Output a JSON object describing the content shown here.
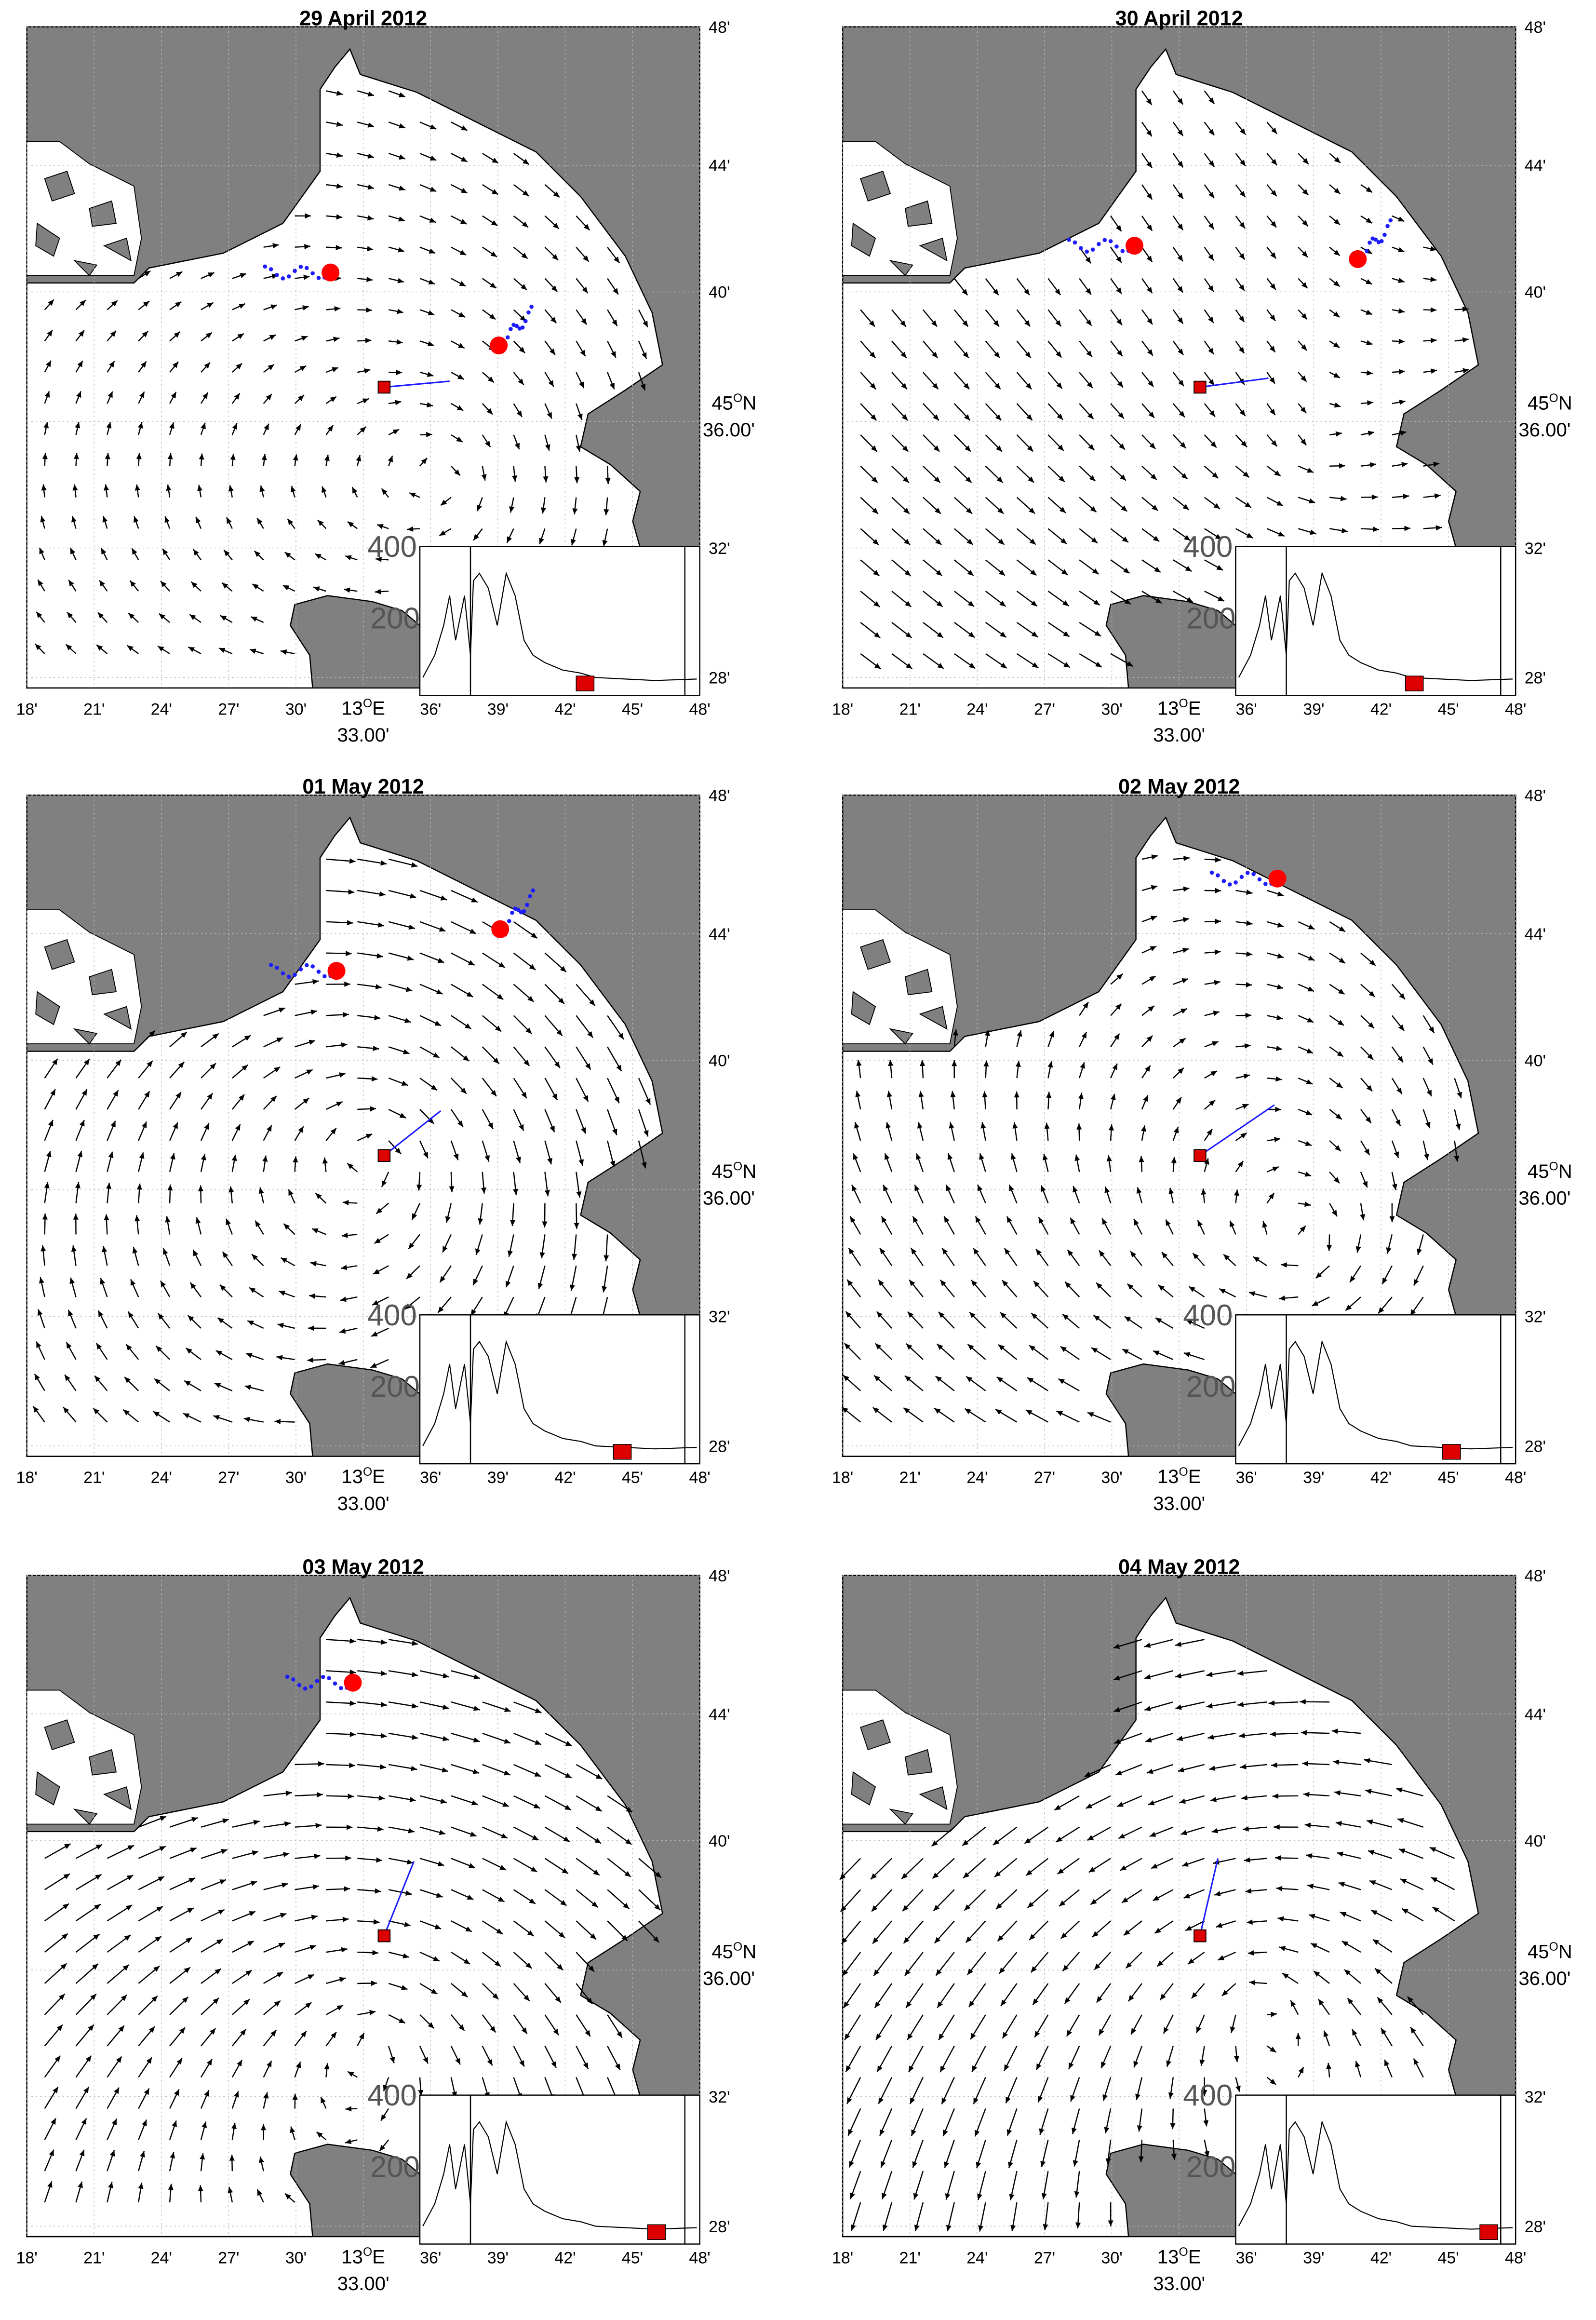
{
  "panels": [
    {
      "title": "29 April 2012"
    },
    {
      "title": "30 April 2012"
    },
    {
      "title": "01 May 2012"
    },
    {
      "title": "02 May 2012"
    },
    {
      "title": "03 May 2012"
    },
    {
      "title": "04 May 2012"
    }
  ],
  "x_ticks": [
    "18'",
    "21'",
    "24'",
    "27'",
    "30'",
    {
      "deg": "13",
      "sup": "O",
      "hemi": "E",
      "min": "33.00'"
    },
    "36'",
    "39'",
    "42'",
    "45'",
    "48'"
  ],
  "y_ticks": [
    "48'",
    "44'",
    "40'",
    {
      "deg": "45",
      "sup": "O",
      "hemi": "N",
      "min": "36.00'"
    },
    "32'",
    "28'"
  ],
  "inset_labels": [
    "400",
    "200"
  ]
}
